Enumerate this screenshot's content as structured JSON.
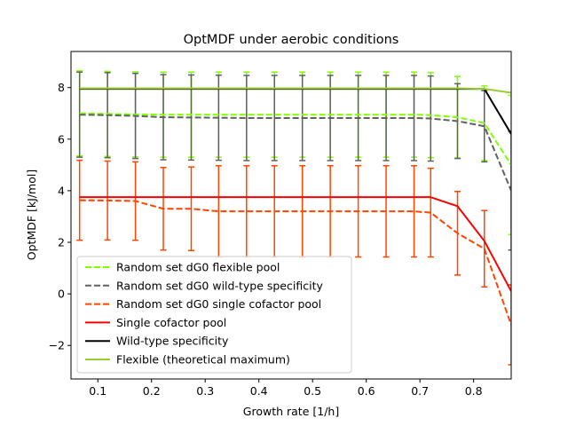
{
  "chart_data": {
    "type": "line",
    "title": "OptMDF under aerobic conditions",
    "xlabel": "Growth rate [1/h]",
    "ylabel": "OptMDF [kJ/mol]",
    "xlim": [
      0.05,
      0.87
    ],
    "ylim": [
      -3.3,
      9.4
    ],
    "x_ticks": [
      0.1,
      0.2,
      0.3,
      0.4,
      0.5,
      0.6,
      0.7,
      0.8
    ],
    "x_tick_labels": [
      "0.1",
      "0.2",
      "0.3",
      "0.4",
      "0.5",
      "0.6",
      "0.7",
      "0.8"
    ],
    "y_ticks": [
      -2,
      0,
      2,
      4,
      6,
      8
    ],
    "y_tick_labels": [
      "−2",
      "0",
      "2",
      "4",
      "6",
      "8"
    ],
    "grid": false,
    "legend_position": "bottom-left",
    "x": [
      0.066,
      0.118,
      0.17,
      0.222,
      0.274,
      0.325,
      0.377,
      0.429,
      0.481,
      0.533,
      0.585,
      0.637,
      0.689,
      0.72,
      0.77,
      0.82,
      0.87
    ],
    "series": [
      {
        "name": "Random set dG0 flexible pool",
        "color": "#7fff00",
        "dash": "dashed",
        "values": [
          7.0,
          6.98,
          6.96,
          6.95,
          6.95,
          6.95,
          6.95,
          6.95,
          6.95,
          6.95,
          6.95,
          6.95,
          6.95,
          6.93,
          6.85,
          6.62,
          5.0
        ],
        "err": [
          1.65,
          1.65,
          1.65,
          1.65,
          1.65,
          1.65,
          1.65,
          1.65,
          1.65,
          1.65,
          1.65,
          1.65,
          1.65,
          1.65,
          1.58,
          1.45,
          2.7
        ]
      },
      {
        "name": "Random set dG0 wild-type specificity",
        "color": "#606060",
        "dash": "dashed",
        "values": [
          6.95,
          6.93,
          6.9,
          6.85,
          6.84,
          6.83,
          6.82,
          6.82,
          6.82,
          6.82,
          6.82,
          6.82,
          6.82,
          6.8,
          6.7,
          6.5,
          4.0
        ],
        "err": [
          1.65,
          1.65,
          1.65,
          1.65,
          1.65,
          1.65,
          1.65,
          1.65,
          1.65,
          1.65,
          1.65,
          1.65,
          1.65,
          1.65,
          1.45,
          1.38,
          2.3
        ]
      },
      {
        "name": "Random set dG0 single cofactor pool",
        "color": "#ff4500",
        "dash": "dashed",
        "values": [
          3.63,
          3.62,
          3.6,
          3.3,
          3.3,
          3.2,
          3.2,
          3.2,
          3.2,
          3.2,
          3.2,
          3.2,
          3.2,
          3.15,
          2.35,
          1.75,
          -1.2
        ],
        "err": [
          1.55,
          1.53,
          1.52,
          1.6,
          1.62,
          1.77,
          1.77,
          1.77,
          1.77,
          1.77,
          1.77,
          1.77,
          1.77,
          1.72,
          1.62,
          1.48,
          1.55
        ]
      },
      {
        "name": "Single cofactor pool",
        "color": "#ff0000",
        "dash": "solid",
        "values": [
          3.75,
          3.75,
          3.75,
          3.75,
          3.75,
          3.75,
          3.75,
          3.75,
          3.75,
          3.75,
          3.75,
          3.75,
          3.75,
          3.75,
          3.4,
          2.05,
          0.1
        ]
      },
      {
        "name": "Wild-type specificity",
        "color": "#000000",
        "dash": "solid",
        "values": [
          7.95,
          7.95,
          7.95,
          7.95,
          7.95,
          7.95,
          7.95,
          7.95,
          7.95,
          7.95,
          7.95,
          7.95,
          7.95,
          7.95,
          7.95,
          7.95,
          6.2
        ]
      },
      {
        "name": "Flexible (theoretical maximum)",
        "color": "#9acd32",
        "dash": "solid",
        "values": [
          7.97,
          7.97,
          7.97,
          7.97,
          7.97,
          7.97,
          7.97,
          7.97,
          7.97,
          7.97,
          7.97,
          7.97,
          7.97,
          7.97,
          7.97,
          7.95,
          7.8
        ]
      }
    ]
  }
}
